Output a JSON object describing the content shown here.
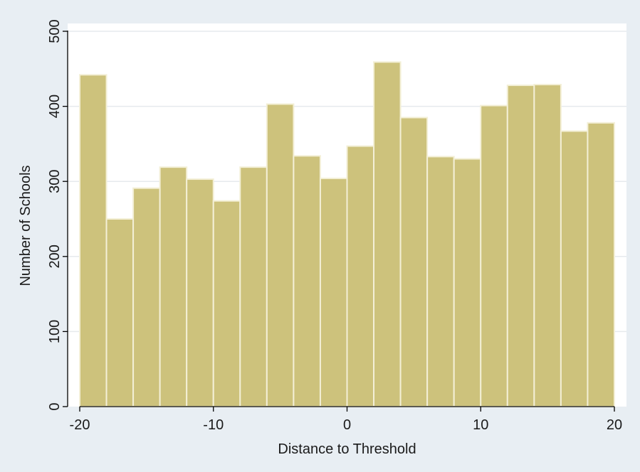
{
  "chart_data": {
    "type": "bar",
    "xlabel": "Distance to Threshold",
    "ylabel": "Number of Schools",
    "xlim": [
      -20,
      20
    ],
    "ylim": [
      0,
      500
    ],
    "x_ticks": [
      "-20",
      "-10",
      "0",
      "10",
      "20"
    ],
    "y_ticks": [
      "0",
      "100",
      "200",
      "300",
      "400",
      "500"
    ],
    "bin_width": 2,
    "bins": [
      {
        "x0": -20,
        "x1": -18,
        "value": 442
      },
      {
        "x0": -18,
        "x1": -16,
        "value": 250
      },
      {
        "x0": -16,
        "x1": -14,
        "value": 291
      },
      {
        "x0": -14,
        "x1": -12,
        "value": 319
      },
      {
        "x0": -12,
        "x1": -10,
        "value": 303
      },
      {
        "x0": -10,
        "x1": -8,
        "value": 274
      },
      {
        "x0": -8,
        "x1": -6,
        "value": 319
      },
      {
        "x0": -6,
        "x1": -4,
        "value": 403
      },
      {
        "x0": -4,
        "x1": -2,
        "value": 334
      },
      {
        "x0": -2,
        "x1": 0,
        "value": 304
      },
      {
        "x0": 0,
        "x1": 2,
        "value": 347
      },
      {
        "x0": 2,
        "x1": 4,
        "value": 459
      },
      {
        "x0": 4,
        "x1": 6,
        "value": 385
      },
      {
        "x0": 6,
        "x1": 8,
        "value": 333
      },
      {
        "x0": 8,
        "x1": 10,
        "value": 330
      },
      {
        "x0": 10,
        "x1": 12,
        "value": 401
      },
      {
        "x0": 12,
        "x1": 14,
        "value": 428
      },
      {
        "x0": 14,
        "x1": 16,
        "value": 429
      },
      {
        "x0": 16,
        "x1": 18,
        "value": 367
      },
      {
        "x0": 18,
        "x1": 20,
        "value": 378
      }
    ],
    "grid": true,
    "colors": {
      "bar_fill": "#cdc27c",
      "bar_stroke": "#f3efd6",
      "plot_background": "#ffffff",
      "outer_background": "#e8eef3",
      "grid": "#e6eaed",
      "axis": "#000000"
    }
  }
}
